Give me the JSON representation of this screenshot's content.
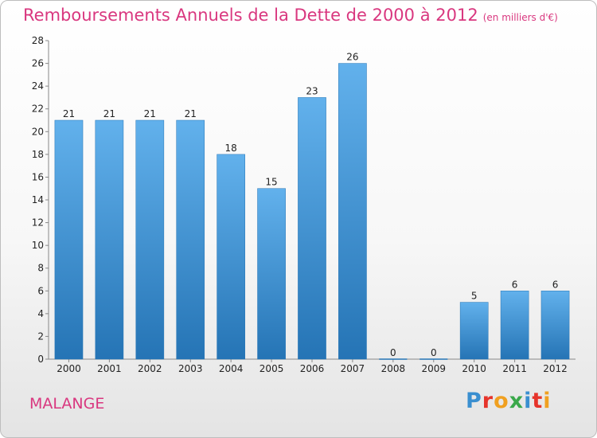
{
  "header": {
    "title": "Remboursements Annuels de la Dette de 2000 à 2012",
    "subtitle": "(en milliers d'€)"
  },
  "footer": {
    "place": "MALANGE",
    "logo": "Proxiti",
    "logo_colors": [
      "#3a8fd0",
      "#e6342b",
      "#f0a020",
      "#3aa84a",
      "#3a8fd0",
      "#e6342b",
      "#f0a020"
    ]
  },
  "colors": {
    "bar": "#4a9fe0",
    "bar_dark": "#2574b5",
    "bar_light": "#62b1ec",
    "title": "#d9377f"
  },
  "chart_data": {
    "type": "bar",
    "title": "Remboursements Annuels de la Dette de 2000 à 2012",
    "subtitle": "(en milliers d'€)",
    "categories": [
      "2000",
      "2001",
      "2002",
      "2003",
      "2004",
      "2005",
      "2006",
      "2007",
      "2008",
      "2009",
      "2010",
      "2011",
      "2012"
    ],
    "values": [
      21,
      21,
      21,
      21,
      18,
      15,
      23,
      26,
      0,
      0,
      5,
      6,
      6
    ],
    "ylim": [
      0,
      28
    ],
    "yticks": [
      0,
      2,
      4,
      6,
      8,
      10,
      12,
      14,
      16,
      18,
      20,
      22,
      24,
      26,
      28
    ],
    "xlabel": "",
    "ylabel": "",
    "grid": false,
    "data_labels": true
  }
}
